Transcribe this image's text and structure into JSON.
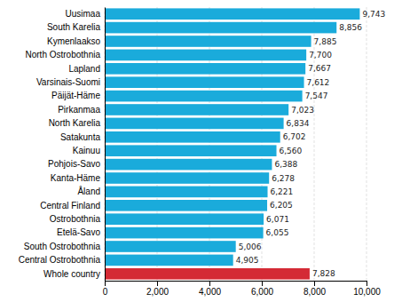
{
  "chart_data": {
    "type": "bar",
    "orientation": "horizontal",
    "categories": [
      "Whole country",
      "Central Ostrobothnia",
      "South Ostrobothnia",
      "Etelä-Savo",
      "Ostrobothnia",
      "Central Finland",
      "Åland",
      "Kanta-Häme",
      "Pohjois-Savo",
      "Kainuu",
      "Satakunta",
      "North Karelia",
      "Pirkanmaa",
      "Päijät-Häme",
      "Varsinais-Suomi",
      "Lapland",
      "North Ostrobothnia",
      "Kymenlaakso",
      "South Karelia",
      "Uusimaa"
    ],
    "values": [
      7828,
      4905,
      5006,
      6055,
      6071,
      6205,
      6221,
      6278,
      6388,
      6560,
      6702,
      6834,
      7023,
      7547,
      7612,
      7667,
      7700,
      7885,
      8856,
      9743
    ],
    "value_labels": [
      "7,828",
      "4,905",
      "5,006",
      "6,055",
      "6,071",
      "6,205",
      "6,221",
      "6,278",
      "6,388",
      "6,560",
      "6,702",
      "6,834",
      "7,023",
      "7,547",
      "7,612",
      "7,667",
      "7,700",
      "7,885",
      "8,856",
      "9,743"
    ],
    "data_labels": true,
    "colors": [
      "#d42a35",
      "#1aabdb",
      "#1aabdb",
      "#1aabdb",
      "#1aabdb",
      "#1aabdb",
      "#1aabdb",
      "#1aabdb",
      "#1aabdb",
      "#1aabdb",
      "#1aabdb",
      "#1aabdb",
      "#1aabdb",
      "#1aabdb",
      "#1aabdb",
      "#1aabdb",
      "#1aabdb",
      "#1aabdb",
      "#1aabdb",
      "#1aabdb"
    ],
    "xlim": [
      0,
      10000
    ],
    "xticks": [
      0,
      {
        "value": 2000,
        "label": "2,000"
      },
      {
        "value": 4000,
        "label": "4,000"
      },
      {
        "value": 6000,
        "label": "6,000"
      },
      {
        "value": 8000,
        "label": "8,000"
      },
      {
        "value": 10000,
        "label": "10,000"
      }
    ],
    "grid": true
  }
}
